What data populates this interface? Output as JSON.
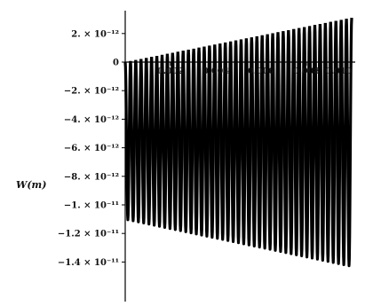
{
  "chart_data": {
    "type": "line",
    "ylabel": "W(m)",
    "xlabel": "",
    "x_tick_labels": [
      "0.002",
      "0.004",
      "0.006",
      "0.008",
      "0.010"
    ],
    "x_ticks": [
      0.002,
      0.004,
      0.006,
      0.008,
      0.01
    ],
    "y_tick_labels": [
      "2. × 10⁻¹²",
      "0",
      "−2. × 10⁻¹²",
      "−4. × 10⁻¹²",
      "−6. × 10⁻¹²",
      "−8. × 10⁻¹²",
      "−1. × 10⁻¹¹",
      "−1.2 × 10⁻¹¹",
      "−1.4 × 10⁻¹¹"
    ],
    "y_ticks": [
      2e-12,
      0,
      -2e-12,
      -4e-12,
      -6e-12,
      -8e-12,
      -1e-11,
      -1.2e-11,
      -1.4e-11
    ],
    "xlim": [
      0,
      0.01
    ],
    "ylim": [
      -1.48e-11,
      3e-12
    ],
    "series": [
      {
        "envelope_x": [
          0,
          0.01
        ],
        "upper_envelope": [
          0,
          3.1e-12
        ],
        "lower_envelope": [
          -1.1e-11,
          -1.43e-11
        ],
        "oscillation_count": 43
      }
    ],
    "grid": false,
    "line_color": "#000000"
  }
}
